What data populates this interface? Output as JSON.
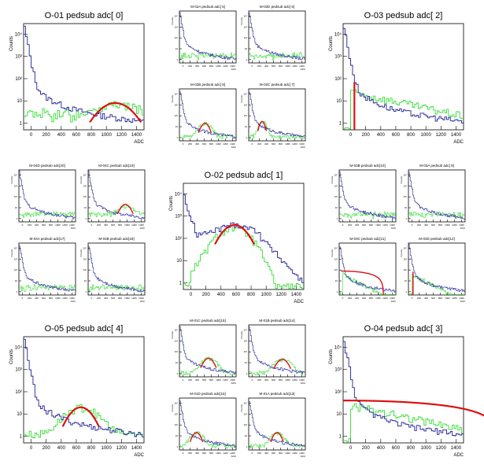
{
  "colors": {
    "blue": "#1f1f99",
    "green": "#33dd33",
    "red": "#dd1111",
    "axis": "#000000"
  },
  "common": {
    "ylabel": "Counts",
    "xlabel": "ADC",
    "y_ticks": [
      "1",
      "10",
      "10²",
      "10³",
      "10⁴"
    ],
    "x_ticks": [
      "0",
      "200",
      "400",
      "600",
      "800",
      "1000",
      "1200",
      "1400"
    ]
  },
  "chart_data": [
    {
      "id": "O-01",
      "type": "line",
      "title": "O-01   pedsub adc[ 0]",
      "xlim": [
        -100,
        1500
      ],
      "ylog": [
        0.5,
        30000
      ],
      "blue_shape": "tail",
      "green": "low",
      "fit": {
        "type": "gauss",
        "center": 1120,
        "sigma": 170,
        "amp": 8
      }
    },
    {
      "id": "M-02A",
      "type": "line",
      "title": "M-02A   pedsub adc[ 5]",
      "xlim": [
        -100,
        1500
      ],
      "ylog": [
        0.5,
        30000
      ],
      "blue_shape": "tail",
      "green": "low",
      "fit": null
    },
    {
      "id": "M-02D",
      "type": "line",
      "title": "M-02D   pedsub adc[ 6]",
      "xlim": [
        -100,
        1500
      ],
      "ylog": [
        0.5,
        30000
      ],
      "blue_shape": "tail",
      "green": "low",
      "fit": null
    },
    {
      "id": "O-03",
      "type": "line",
      "title": "O-03   pedsub adc[ 2]",
      "xlim": [
        -100,
        1500
      ],
      "ylog": [
        0.5,
        30000
      ],
      "blue_shape": "tail",
      "green": "plateau",
      "fit": {
        "type": "line",
        "center": 50,
        "sigma": 0,
        "amp": 0
      }
    },
    {
      "id": "M-02B",
      "type": "line",
      "title": "M-02B   pedsub adc[ 8]",
      "xlim": [
        -100,
        1500
      ],
      "ylog": [
        0.5,
        30000
      ],
      "blue_shape": "tail",
      "green": "peak",
      "fit": {
        "type": "gauss",
        "center": 620,
        "sigma": 90,
        "amp": 20
      }
    },
    {
      "id": "M-02C",
      "type": "line",
      "title": "M-02C   pedsub adc[ 7]",
      "xlim": [
        -100,
        1500
      ],
      "ylog": [
        0.5,
        30000
      ],
      "blue_shape": "tail",
      "green": "peak",
      "fit": {
        "type": "gauss",
        "center": 280,
        "sigma": 60,
        "amp": 30
      }
    },
    {
      "id": "M-04D",
      "type": "line",
      "title": "M-04D   pedsub adc[20]",
      "xlim": [
        -100,
        1500
      ],
      "ylog": [
        0.5,
        30000
      ],
      "blue_shape": "tail",
      "green": "low",
      "fit": null
    },
    {
      "id": "M-04C",
      "type": "line",
      "title": "M-04C   pedsub adc[19]",
      "xlim": [
        -100,
        1500
      ],
      "ylog": [
        0.5,
        30000
      ],
      "blue_shape": "tail",
      "green": "low",
      "fit": {
        "type": "gauss",
        "center": 950,
        "sigma": 110,
        "amp": 20
      }
    },
    {
      "id": "O-02",
      "type": "line",
      "title": "O-02   pedsub adc[ 1]",
      "xlim": [
        -100,
        1500
      ],
      "ylog": [
        0.5,
        30000
      ],
      "blue_shape": "broad",
      "green": "broad",
      "fit": {
        "type": "gauss",
        "center": 580,
        "sigma": 130,
        "amp": 400
      }
    },
    {
      "id": "M-03B",
      "type": "line",
      "title": "M-03B   pedsub adc[10]",
      "xlim": [
        -100,
        1500
      ],
      "ylog": [
        0.5,
        30000
      ],
      "blue_shape": "tail",
      "green": "low",
      "fit": null
    },
    {
      "id": "M-03A",
      "type": "line",
      "title": "M-03A   pedsub adc[ 9]",
      "xlim": [
        -100,
        1500
      ],
      "ylog": [
        0.5,
        30000
      ],
      "blue_shape": "tail",
      "green": "low",
      "fit": null
    },
    {
      "id": "M-04A",
      "type": "line",
      "title": "M-04A   pedsub adc[17]",
      "xlim": [
        -100,
        1500
      ],
      "ylog": [
        0.5,
        30000
      ],
      "blue_shape": "tail",
      "green": "low",
      "fit": null
    },
    {
      "id": "M-04B",
      "type": "line",
      "title": "M-04B   pedsub adc[18]",
      "xlim": [
        -100,
        1500
      ],
      "ylog": [
        0.5,
        30000
      ],
      "blue_shape": "tail",
      "green": "low",
      "fit": null
    },
    {
      "id": "M-03C",
      "type": "line",
      "title": "M-03C   pedsub adc[11]",
      "xlim": [
        -100,
        1500
      ],
      "ylog": [
        0.5,
        30000
      ],
      "blue_shape": "tail",
      "green": "fall",
      "fit": {
        "type": "fall",
        "center": -50,
        "sigma": 400,
        "amp": 80
      }
    },
    {
      "id": "M-03D",
      "type": "line",
      "title": "M-03D   pedsub adc[12]",
      "xlim": [
        -100,
        1500
      ],
      "ylog": [
        0.5,
        30000
      ],
      "blue_shape": "tail",
      "green": "fall",
      "fit": {
        "type": "line",
        "center": 30,
        "sigma": 0,
        "amp": 0
      }
    },
    {
      "id": "O-05",
      "type": "line",
      "title": "O-05   pedsub adc[ 4]",
      "xlim": [
        -100,
        1500
      ],
      "ylog": [
        0.5,
        30000
      ],
      "blue_shape": "tail",
      "green": "peak",
      "fit": {
        "type": "gauss",
        "center": 660,
        "sigma": 120,
        "amp": 20
      }
    },
    {
      "id": "M-01C",
      "type": "line",
      "title": "M-01C   pedsub adc[15]",
      "xlim": [
        -100,
        1500
      ],
      "ylog": [
        0.5,
        30000
      ],
      "blue_shape": "tail",
      "green": "peak",
      "fit": {
        "type": "gauss",
        "center": 720,
        "sigma": 110,
        "amp": 25
      }
    },
    {
      "id": "M-01B",
      "type": "line",
      "title": "M-01B   pedsub adc[14]",
      "xlim": [
        -100,
        1500
      ],
      "ylog": [
        0.5,
        30000
      ],
      "blue_shape": "tail",
      "green": "peak",
      "fit": {
        "type": "gauss",
        "center": 850,
        "sigma": 120,
        "amp": 20
      }
    },
    {
      "id": "O-04",
      "type": "line",
      "title": "O-04   pedsub adc[ 3]",
      "xlim": [
        -100,
        1500
      ],
      "ylog": [
        0.5,
        30000
      ],
      "blue_shape": "tail",
      "green": "plateau",
      "fit": {
        "type": "fall",
        "center": -100,
        "sigma": 700,
        "amp": 40
      }
    },
    {
      "id": "M-01D",
      "type": "line",
      "title": "M-01D   pedsub adc[16]",
      "xlim": [
        -100,
        1500
      ],
      "ylog": [
        0.5,
        30000
      ],
      "blue_shape": "tail",
      "green": "peak",
      "fit": {
        "type": "gauss",
        "center": 380,
        "sigma": 90,
        "amp": 20
      }
    },
    {
      "id": "M-01A",
      "type": "line",
      "title": "M-01A   pedsub adc[13]",
      "xlim": [
        -100,
        1500
      ],
      "ylog": [
        0.5,
        30000
      ],
      "blue_shape": "tail",
      "green": "peak",
      "fit": {
        "type": "gauss",
        "center": 700,
        "sigma": 90,
        "amp": 20
      }
    }
  ]
}
